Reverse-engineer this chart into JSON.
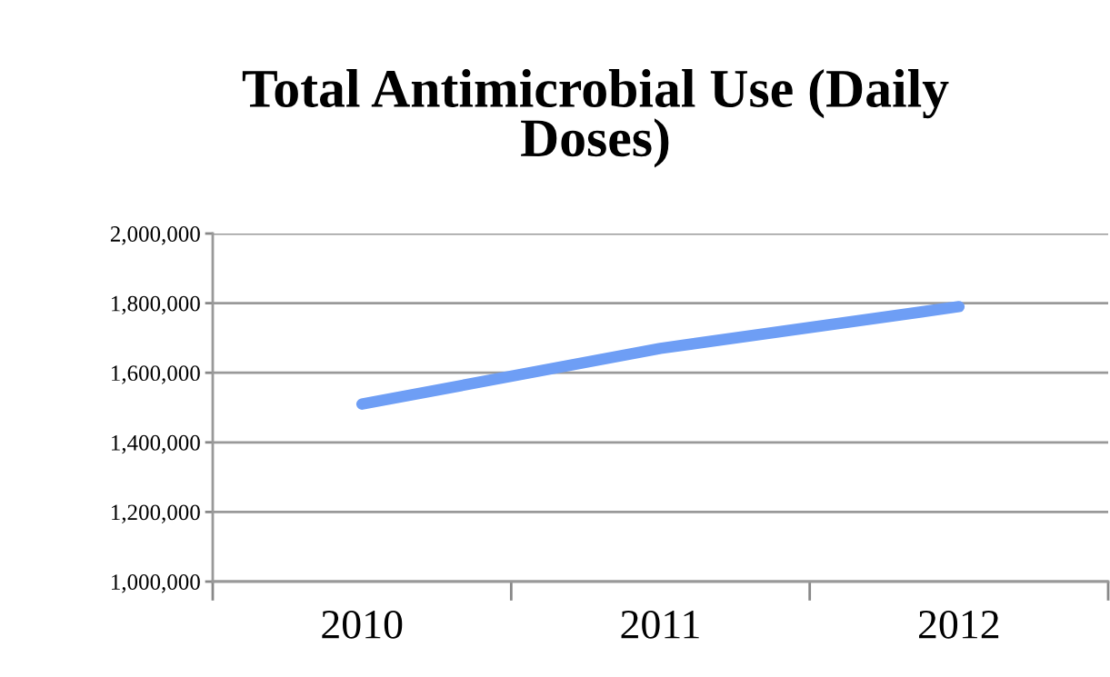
{
  "chart_data": {
    "type": "line",
    "title": "Total Antimicrobial Use (Daily Doses)",
    "categories": [
      "2010",
      "2011",
      "2012"
    ],
    "series": [
      {
        "color": "#6e9ef5",
        "values": [
          1510000,
          1670000,
          1790000
        ]
      }
    ],
    "ylim": [
      1000000,
      2000000
    ],
    "yticks": [
      {
        "value": 1000000,
        "label": "1,000,000"
      },
      {
        "value": 1200000,
        "label": "1,200,000"
      },
      {
        "value": 1400000,
        "label": "1,400,000"
      },
      {
        "value": 1600000,
        "label": "1,600,000"
      },
      {
        "value": 1800000,
        "label": "1,800,000"
      },
      {
        "value": 2000000,
        "label": "2,000,000"
      }
    ],
    "grid": "y",
    "legend": false,
    "marker": "none",
    "line_style": "solid"
  }
}
